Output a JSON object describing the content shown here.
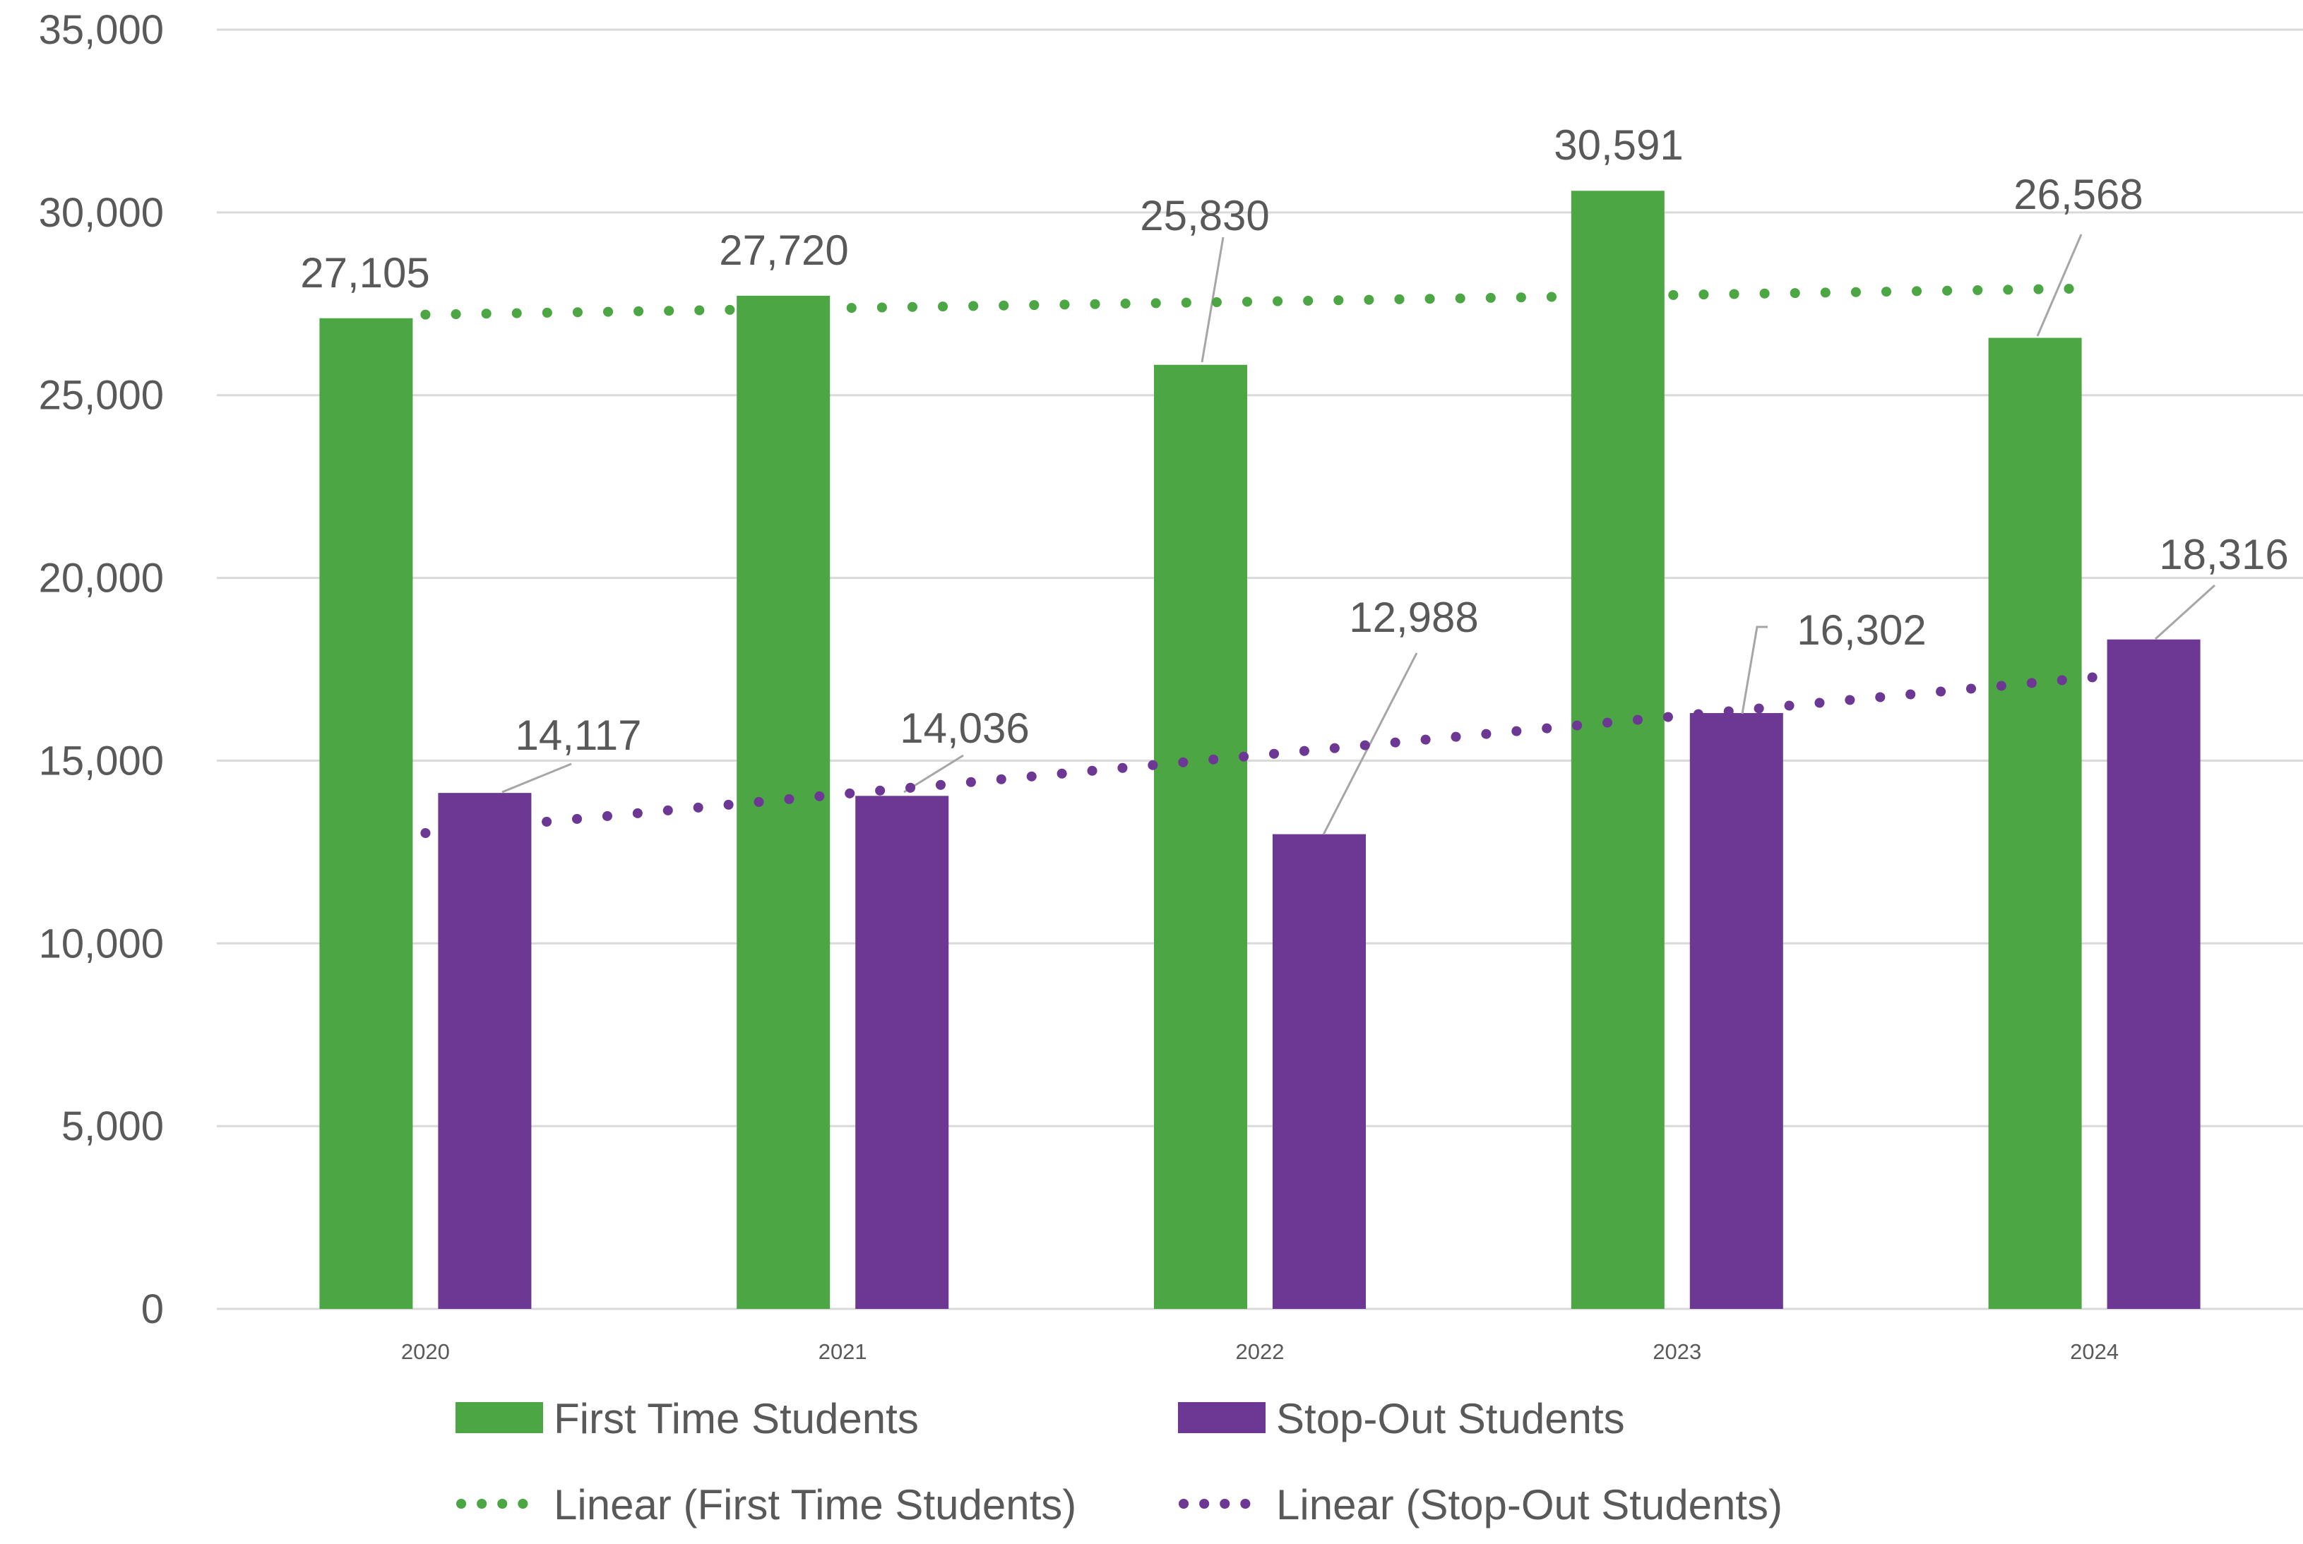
{
  "chart_data": {
    "type": "bar",
    "categories": [
      "2020",
      "2021",
      "2022",
      "2023",
      "2024"
    ],
    "series": [
      {
        "name": "First Time Students",
        "values": [
          27105,
          27720,
          25830,
          30591,
          26568
        ],
        "labels": [
          "27,105",
          "27,720",
          "25,830",
          "30,591",
          "26,568"
        ],
        "color": "#4ca644"
      },
      {
        "name": "Stop-Out Students",
        "values": [
          14117,
          14036,
          12988,
          16302,
          18316
        ],
        "labels": [
          "14,117",
          "14,036",
          "12,988",
          "16,302",
          "18,316"
        ],
        "color": "#6c3893"
      }
    ],
    "trendlines": [
      {
        "name": "Linear (First Time Students)",
        "type": "linear",
        "series": "First Time Students",
        "color": "#4ca644"
      },
      {
        "name": "Linear (Stop-Out Students)",
        "type": "linear",
        "series": "Stop-Out Students",
        "color": "#6c3893"
      }
    ],
    "ylim": [
      0,
      35000
    ],
    "yticks": [
      0,
      5000,
      10000,
      15000,
      20000,
      25000,
      30000,
      35000
    ],
    "ytick_labels": [
      "0",
      "5,000",
      "10,000",
      "15,000",
      "20,000",
      "25,000",
      "30,000",
      "35,000"
    ],
    "title": "",
    "xlabel": "",
    "ylabel": "",
    "grid": true,
    "legend": "bottom"
  }
}
